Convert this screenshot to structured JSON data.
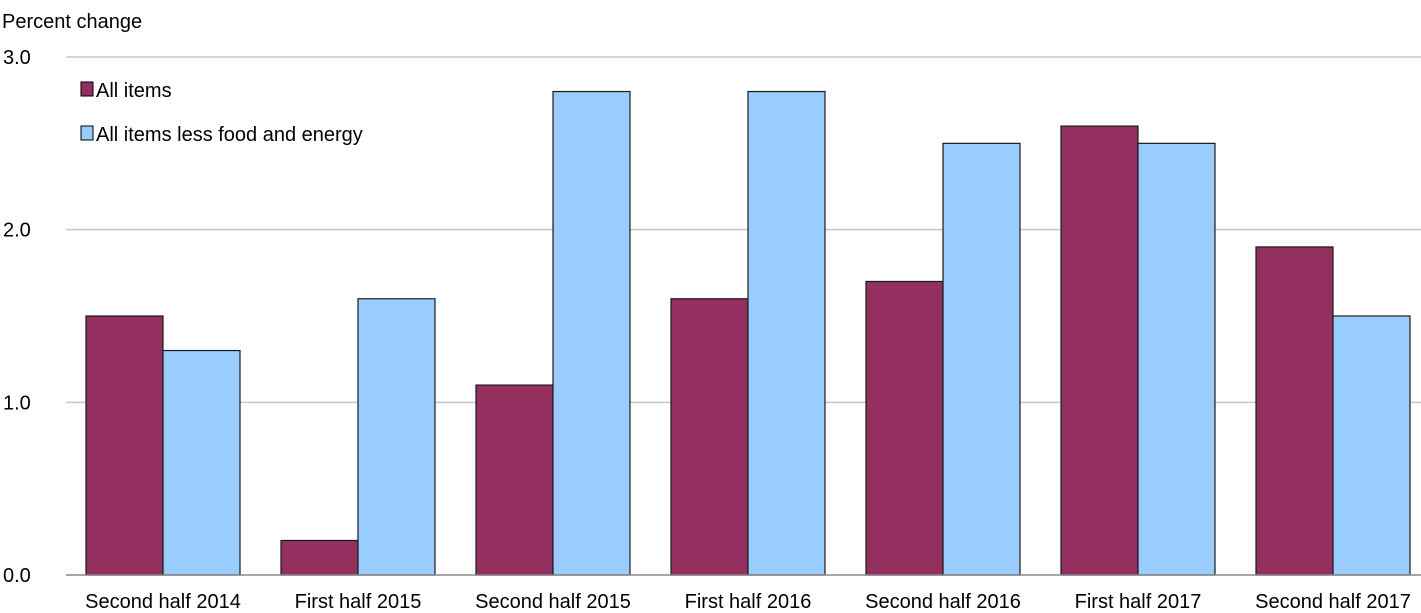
{
  "chart_data": {
    "type": "bar",
    "ylabel": "Percent change",
    "ylim": [
      0,
      3.0
    ],
    "yticks": [
      "0.0",
      "1.0",
      "2.0",
      "3.0"
    ],
    "grid": true,
    "legend_position": "top-left",
    "categories": [
      "Second half 2014",
      "First half 2015",
      "Second half 2015",
      "First half 2016",
      "Second half 2016",
      "First half 2017",
      "Second half 2017"
    ],
    "series": [
      {
        "name": "All items",
        "color": "#94305f",
        "values": [
          1.5,
          0.2,
          1.1,
          1.6,
          1.7,
          2.6,
          1.9
        ]
      },
      {
        "name": "All items less food and energy",
        "color": "#99ccff",
        "values": [
          1.3,
          1.6,
          2.8,
          2.8,
          2.5,
          2.5,
          1.5
        ]
      }
    ]
  }
}
